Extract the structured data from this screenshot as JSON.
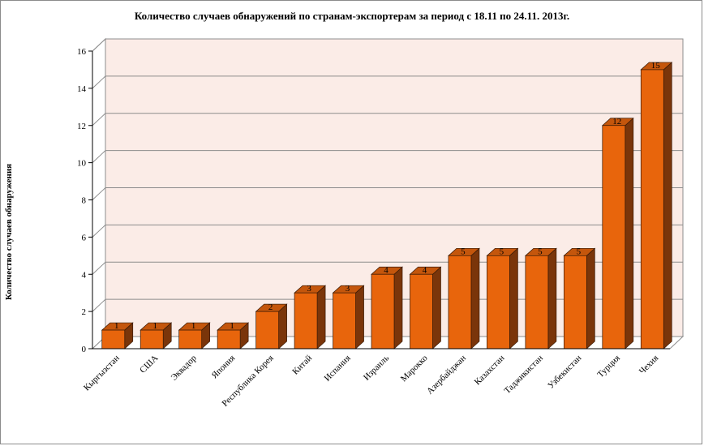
{
  "chart_data": {
    "type": "bar",
    "title": "Количество случаев обнаружений по странам-экспортерам за период с 18.11 по 24.11. 2013г.",
    "xlabel": "",
    "ylabel": "Количество случаев обнаружения",
    "ylim": [
      0,
      16
    ],
    "yticks": [
      "0",
      "2",
      "4",
      "6",
      "8",
      "10",
      "12",
      "14",
      "16"
    ],
    "grid": true,
    "legend": "none",
    "categories": [
      "Кыргызстан",
      "США",
      "Эквадор",
      "Япония",
      "Республика Корея",
      "Китай",
      "Испания",
      "Израиль",
      "Марокко",
      "Азербайджан",
      "Казахстан",
      "Таджикистан",
      "Узбекистан",
      "Турция",
      "Чехия"
    ],
    "values": [
      1,
      1,
      1,
      1,
      2,
      3,
      3,
      4,
      4,
      5,
      5,
      5,
      5,
      12,
      15
    ],
    "colors": {
      "bar_front": "#e8650c",
      "bar_top": "#c4560c",
      "bar_side": "#7a350a",
      "back_wall": "#fbece7",
      "gridline": "#8c8c8c"
    }
  }
}
